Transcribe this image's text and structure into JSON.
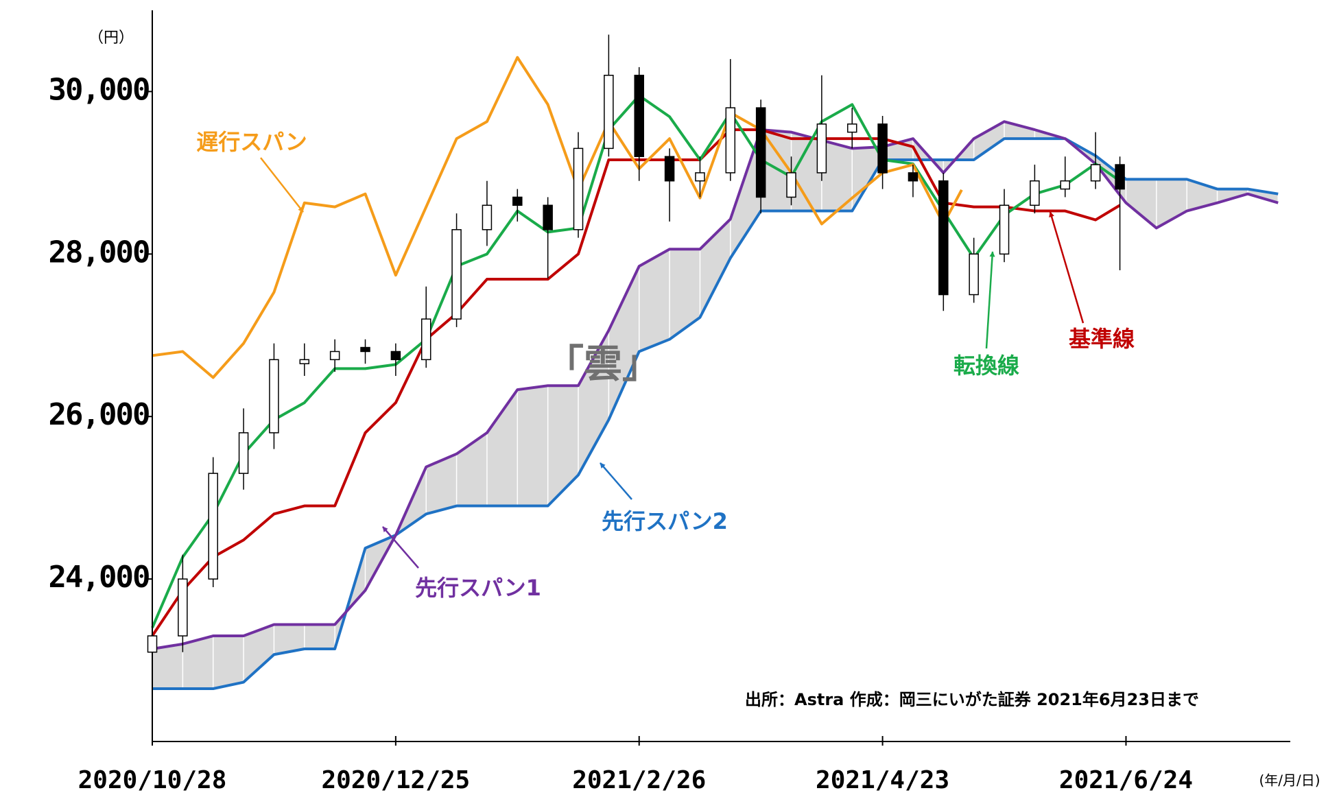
{
  "chart_data": {
    "type": "candlestick",
    "y_unit_label": "（円）",
    "x_unit_label": "(年/月/日)",
    "source": "出所：Astra 作成：岡三にいがた証券 2021年6月23日まで",
    "xlim": [
      0,
      187
    ],
    "xticks": [
      {
        "value": 0,
        "label": "2020/10/28"
      },
      {
        "value": 40,
        "label": "2020/12/25"
      },
      {
        "value": 80,
        "label": "2021/2/26"
      },
      {
        "value": 120,
        "label": "2021/4/23"
      },
      {
        "value": 160,
        "label": "2021/6/24"
      }
    ],
    "ylim": [
      22000,
      31000
    ],
    "yticks": [
      {
        "value": 24000,
        "label": "24,000"
      },
      {
        "value": 26000,
        "label": "26,000"
      },
      {
        "value": 28000,
        "label": "28,000"
      },
      {
        "value": 30000,
        "label": "30,000"
      }
    ],
    "cloud_color": "#d9d9d9",
    "candles": {
      "x": [
        0,
        5,
        10,
        15,
        20,
        25,
        30,
        35,
        40,
        45,
        50,
        55,
        60,
        65,
        70,
        75,
        80,
        85,
        90,
        95,
        100,
        105,
        110,
        115,
        120,
        125,
        130,
        135,
        140,
        145,
        150,
        155,
        159
      ],
      "open": [
        23100,
        23300,
        24000,
        25300,
        25800,
        26650,
        26700,
        26850,
        26800,
        26700,
        27200,
        28300,
        28700,
        28600,
        28300,
        29300,
        30200,
        29200,
        28900,
        29000,
        29800,
        28700,
        29000,
        29500,
        29600,
        29000,
        28900,
        27500,
        28000,
        28600,
        28800,
        28900,
        29100
      ],
      "high": [
        23500,
        24300,
        25500,
        26100,
        26900,
        26900,
        26950,
        26950,
        26900,
        27600,
        28500,
        28900,
        28800,
        28700,
        29500,
        30700,
        30300,
        29300,
        29200,
        30400,
        29900,
        29200,
        30200,
        29800,
        29700,
        29100,
        29000,
        28200,
        28800,
        29100,
        29200,
        29500,
        29200
      ],
      "low": [
        22900,
        23100,
        23900,
        25100,
        25600,
        26500,
        26550,
        26650,
        26500,
        26600,
        27100,
        28100,
        28400,
        27700,
        28200,
        29200,
        28900,
        28400,
        28700,
        28900,
        28500,
        28600,
        28900,
        29300,
        28800,
        28700,
        27300,
        27400,
        27900,
        28500,
        28700,
        28800,
        27800
      ],
      "close": [
        23300,
        24000,
        25300,
        25800,
        26700,
        26700,
        26800,
        26800,
        26700,
        27200,
        28300,
        28600,
        28600,
        28300,
        29300,
        30200,
        29200,
        28900,
        29000,
        29800,
        28700,
        29000,
        29600,
        29600,
        29000,
        28900,
        27500,
        28000,
        28600,
        28900,
        28900,
        29100,
        28800
      ]
    },
    "series": [
      {
        "name": "遅行スパン",
        "color": "#f59c1a",
        "x": [
          0,
          5,
          10,
          15,
          20,
          25,
          30,
          35,
          40,
          45,
          50,
          55,
          60,
          65,
          70,
          75,
          80,
          85,
          90,
          95,
          100,
          105,
          110,
          115,
          120,
          125,
          130,
          133
        ],
        "values": [
          26750,
          26800,
          26480,
          26900,
          27530,
          28630,
          28580,
          28740,
          27740,
          28580,
          29420,
          29630,
          30420,
          29840,
          28790,
          29630,
          29050,
          29420,
          28690,
          29740,
          29530,
          29000,
          28370,
          28690,
          29000,
          29100,
          28370,
          28790
        ]
      },
      {
        "name": "転換線",
        "color": "#1aab4a",
        "x": [
          0,
          5,
          10,
          15,
          20,
          25,
          30,
          35,
          40,
          45,
          50,
          55,
          60,
          65,
          70,
          75,
          80,
          85,
          90,
          95,
          100,
          105,
          110,
          115,
          120,
          125,
          130,
          135,
          140,
          145,
          150,
          155,
          159
        ],
        "values": [
          23400,
          24270,
          24800,
          25540,
          25960,
          26170,
          26590,
          26590,
          26640,
          26950,
          27850,
          28000,
          28530,
          28270,
          28320,
          29530,
          29950,
          29690,
          29160,
          29740,
          29160,
          28950,
          29630,
          29840,
          29160,
          29110,
          28530,
          27950,
          28480,
          28740,
          28850,
          29110,
          28900
        ]
      },
      {
        "name": "基準線",
        "color": "#c00000",
        "x": [
          0,
          5,
          10,
          15,
          20,
          25,
          30,
          35,
          40,
          45,
          50,
          55,
          60,
          65,
          70,
          75,
          80,
          85,
          90,
          95,
          100,
          105,
          110,
          115,
          120,
          125,
          130,
          135,
          140,
          145,
          150,
          155,
          159
        ],
        "values": [
          23300,
          23860,
          24270,
          24480,
          24800,
          24900,
          24900,
          25800,
          26170,
          26950,
          27270,
          27690,
          27690,
          27690,
          28000,
          29160,
          29160,
          29160,
          29160,
          29530,
          29530,
          29420,
          29420,
          29420,
          29420,
          29320,
          28630,
          28580,
          28580,
          28530,
          28530,
          28420,
          28600
        ]
      },
      {
        "name": "先行スパン1",
        "color": "#7030a0",
        "x": [
          0,
          5,
          10,
          15,
          20,
          25,
          30,
          35,
          40,
          45,
          50,
          55,
          60,
          65,
          70,
          75,
          80,
          85,
          90,
          95,
          100,
          105,
          110,
          115,
          120,
          125,
          130,
          135,
          140,
          145,
          150,
          155,
          160,
          165,
          170,
          175,
          180,
          185
        ],
        "values": [
          23140,
          23200,
          23300,
          23300,
          23440,
          23440,
          23440,
          23860,
          24540,
          25380,
          25540,
          25800,
          26330,
          26380,
          26380,
          27060,
          27850,
          28060,
          28060,
          28430,
          29530,
          29500,
          29400,
          29300,
          29320,
          29420,
          29000,
          29420,
          29630,
          29530,
          29420,
          29110,
          28630,
          28320,
          28530,
          28630,
          28740,
          28630
        ]
      },
      {
        "name": "先行スパン2",
        "color": "#1f72c4",
        "x": [
          0,
          5,
          10,
          15,
          20,
          25,
          30,
          35,
          40,
          45,
          50,
          55,
          60,
          65,
          70,
          75,
          80,
          85,
          90,
          95,
          100,
          105,
          110,
          115,
          120,
          125,
          130,
          135,
          140,
          145,
          150,
          155,
          160,
          165,
          170,
          175,
          180,
          185
        ],
        "values": [
          22650,
          22650,
          22650,
          22730,
          23070,
          23140,
          23140,
          24380,
          24540,
          24800,
          24900,
          24900,
          24900,
          24900,
          25280,
          25960,
          26800,
          26950,
          27220,
          27950,
          28530,
          28530,
          28530,
          28530,
          29160,
          29160,
          29160,
          29160,
          29420,
          29420,
          29420,
          29210,
          28920,
          28920,
          28920,
          28800,
          28800,
          28740
        ]
      }
    ],
    "annotations": [
      {
        "text": "遅行スパン",
        "color": "#f59c1a"
      },
      {
        "text": "先行スパン2",
        "color": "#1f72c4"
      },
      {
        "text": "先行スパン1",
        "color": "#7030a0"
      },
      {
        "text": "転換線",
        "color": "#1aab4a"
      },
      {
        "text": "基準線",
        "color": "#c00000"
      },
      {
        "text": "「雲」",
        "color": "#707070"
      }
    ]
  }
}
